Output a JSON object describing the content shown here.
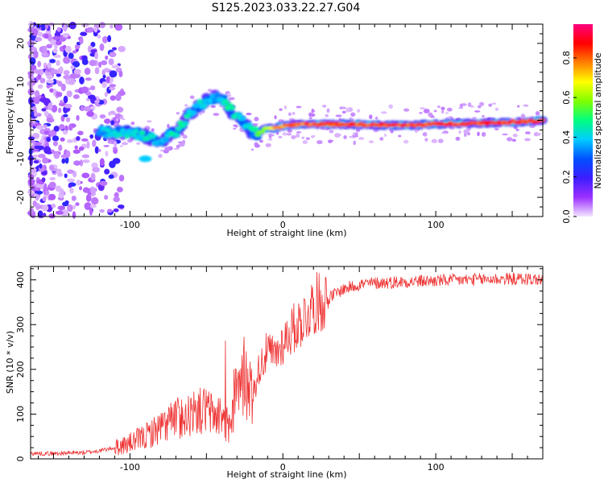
{
  "title": "S125.2023.033.22.27.G04",
  "chart_data": [
    {
      "type": "heatmap",
      "xlabel": "Height of straight line (km)",
      "ylabel": "Frequency (Hz)",
      "xlim": [
        -165,
        170
      ],
      "ylim": [
        -25,
        25
      ],
      "xticks": [
        -100,
        0,
        100
      ],
      "yticks": [
        -20,
        -10,
        0,
        10,
        20
      ],
      "colorbar": {
        "label": "Normalized spectral amplitude",
        "range": [
          0,
          0.97
        ],
        "ticks": [
          "0.0",
          "0.2",
          "0.4",
          "0.6",
          "0.8"
        ],
        "colors": [
          "#f4e6ff",
          "#9b30ff",
          "#3c1eff",
          "#0050ff",
          "#00ccff",
          "#00ff80",
          "#80ff00",
          "#ffff00",
          "#ff8000",
          "#ff0000",
          "#ff007f"
        ]
      },
      "ridge": {
        "height_km": [
          -120,
          -110,
          -100,
          -95,
          -90,
          -85,
          -80,
          -75,
          -70,
          -65,
          -60,
          -55,
          -50,
          -45,
          -42,
          -40,
          -37,
          -35,
          -30,
          -25,
          -20,
          -17,
          -15,
          -10,
          -5,
          0,
          10,
          20,
          40,
          60,
          80,
          100,
          120,
          140,
          160,
          170
        ],
        "frequency_hz": [
          -3,
          -3,
          -3,
          -3.5,
          -4,
          -5,
          -6,
          -4,
          -3,
          -1,
          2,
          4,
          5,
          6,
          6,
          5.5,
          4.5,
          3,
          1,
          -1,
          -3,
          -3.5,
          -3,
          -2,
          -2,
          -1.5,
          -1,
          -1,
          -1,
          -1.2,
          -1.3,
          -1,
          -0.8,
          -0.6,
          -0.3,
          0
        ],
        "amplitude": [
          0.4,
          0.45,
          0.45,
          0.45,
          0.5,
          0.45,
          0.4,
          0.45,
          0.5,
          0.5,
          0.45,
          0.45,
          0.45,
          0.4,
          0.4,
          0.45,
          0.5,
          0.5,
          0.5,
          0.45,
          0.5,
          0.55,
          0.6,
          0.7,
          0.8,
          0.85,
          0.9,
          0.92,
          0.92,
          0.93,
          0.93,
          0.94,
          0.95,
          0.95,
          0.96,
          0.96
        ]
      }
    },
    {
      "type": "line",
      "xlabel": "Height of straight line (km)",
      "ylabel": "SNR (10 * v/v)",
      "xlim": [
        -165,
        170
      ],
      "ylim": [
        0,
        430
      ],
      "xticks": [
        -100,
        0,
        100
      ],
      "yticks": [
        0,
        100,
        200,
        300,
        400
      ],
      "color": "#ee3333",
      "series": [
        {
          "x": [
            -165,
            -150,
            -140,
            -130,
            -120,
            -110,
            -100,
            -90,
            -80,
            -70,
            -60,
            -50,
            -45,
            -40,
            -35,
            -30,
            -27,
            -25,
            -20,
            -15,
            -10,
            -5,
            0,
            5,
            10,
            15,
            20,
            30,
            40,
            50,
            60,
            80,
            100,
            120,
            140,
            160,
            170
          ],
          "y": [
            12,
            12,
            13,
            14,
            18,
            25,
            35,
            50,
            70,
            90,
            100,
            110,
            95,
            100,
            70,
            150,
            180,
            170,
            140,
            210,
            240,
            230,
            260,
            285,
            300,
            320,
            345,
            360,
            380,
            390,
            393,
            396,
            398,
            400,
            402,
            402,
            400
          ]
        }
      ]
    }
  ]
}
